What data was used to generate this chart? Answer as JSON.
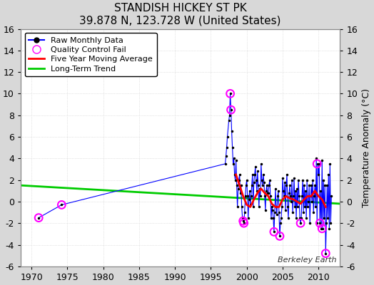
{
  "title": "STANDISH HICKEY ST PK",
  "subtitle": "39.878 N, 123.728 W (United States)",
  "ylabel_right": "Temperature Anomaly (°C)",
  "ylim": [
    -6,
    16
  ],
  "xlim": [
    1968.5,
    2013.0
  ],
  "yticks": [
    -6,
    -4,
    -2,
    0,
    2,
    4,
    6,
    8,
    10,
    12,
    14,
    16
  ],
  "xticks": [
    1970,
    1975,
    1980,
    1985,
    1990,
    1995,
    2000,
    2005,
    2010
  ],
  "bg_color": "#d8d8d8",
  "plot_bg": "#ffffff",
  "watermark": "Berkeley Earth",
  "raw_x": [
    1971.0,
    1974.2,
    1997.0,
    1997.1,
    1997.2,
    1997.3,
    1997.5,
    1997.6,
    1997.7,
    1997.8,
    1997.9,
    1998.0,
    1998.1,
    1998.2,
    1998.3,
    1998.4,
    1998.5,
    1998.6,
    1998.7,
    1998.8,
    1998.9,
    1999.0,
    1999.1,
    1999.2,
    1999.3,
    1999.4,
    1999.5,
    1999.6,
    1999.7,
    1999.8,
    1999.9,
    2000.0,
    2000.1,
    2000.2,
    2000.3,
    2000.4,
    2000.5,
    2000.6,
    2000.7,
    2000.8,
    2000.9,
    2001.0,
    2001.1,
    2001.2,
    2001.3,
    2001.4,
    2001.5,
    2001.6,
    2001.7,
    2001.8,
    2001.9,
    2002.0,
    2002.1,
    2002.2,
    2002.3,
    2002.4,
    2002.5,
    2002.6,
    2002.7,
    2002.8,
    2002.9,
    2003.0,
    2003.1,
    2003.2,
    2003.3,
    2003.4,
    2003.5,
    2003.6,
    2003.7,
    2003.8,
    2003.9,
    2004.0,
    2004.1,
    2004.2,
    2004.3,
    2004.4,
    2004.5,
    2004.6,
    2004.7,
    2004.8,
    2004.9,
    2005.0,
    2005.1,
    2005.2,
    2005.3,
    2005.4,
    2005.5,
    2005.6,
    2005.7,
    2005.8,
    2005.9,
    2006.0,
    2006.1,
    2006.2,
    2006.3,
    2006.4,
    2006.5,
    2006.6,
    2006.7,
    2006.8,
    2006.9,
    2007.0,
    2007.1,
    2007.2,
    2007.3,
    2007.4,
    2007.5,
    2007.6,
    2007.7,
    2007.8,
    2007.9,
    2008.0,
    2008.1,
    2008.2,
    2008.3,
    2008.4,
    2008.5,
    2008.6,
    2008.7,
    2008.8,
    2008.9,
    2009.0,
    2009.1,
    2009.2,
    2009.3,
    2009.4,
    2009.5,
    2009.6,
    2009.7,
    2009.8,
    2009.9,
    2010.0,
    2010.1,
    2010.2,
    2010.3,
    2010.4,
    2010.5,
    2010.6,
    2010.7,
    2010.8,
    2010.9,
    2011.0,
    2011.1,
    2011.2,
    2011.3,
    2011.4,
    2011.5,
    2011.6,
    2011.7,
    2011.8
  ],
  "raw_y": [
    -1.5,
    -0.3,
    3.5,
    4.2,
    5.0,
    6.0,
    7.5,
    8.0,
    10.0,
    8.5,
    6.5,
    5.0,
    3.5,
    4.0,
    2.5,
    2.0,
    3.8,
    1.5,
    -0.5,
    1.2,
    2.0,
    2.5,
    0.8,
    1.5,
    -0.5,
    -1.5,
    -1.8,
    -2.0,
    -1.0,
    0.5,
    1.5,
    2.0,
    0.5,
    -1.5,
    0.2,
    1.0,
    -0.3,
    0.5,
    1.5,
    2.5,
    -0.5,
    1.8,
    2.5,
    3.2,
    2.0,
    1.0,
    2.8,
    1.5,
    -0.5,
    1.2,
    0.5,
    3.5,
    2.0,
    1.5,
    2.5,
    1.8,
    0.5,
    -0.8,
    1.0,
    1.5,
    0.8,
    0.8,
    1.5,
    2.0,
    0.5,
    -1.5,
    -0.5,
    -0.8,
    -1.5,
    -2.8,
    -1.0,
    1.2,
    -0.5,
    -1.2,
    0.5,
    1.0,
    -1.0,
    -3.2,
    -2.0,
    -1.5,
    -0.5,
    2.2,
    1.0,
    0.5,
    1.8,
    -0.8,
    1.5,
    2.5,
    -0.5,
    -1.5,
    0.8,
    1.5,
    0.5,
    0.0,
    2.0,
    -1.0,
    0.5,
    2.2,
    -0.5,
    1.0,
    -1.5,
    1.2,
    -0.5,
    2.0,
    0.5,
    -1.5,
    -2.0,
    -1.5,
    0.5,
    2.0,
    -1.0,
    1.5,
    -0.5,
    1.0,
    -1.5,
    2.0,
    -0.5,
    0.0,
    1.5,
    -2.0,
    0.5,
    1.5,
    0.0,
    2.0,
    -1.0,
    0.5,
    1.5,
    -0.5,
    4.0,
    -2.0,
    3.5,
    2.5,
    3.5,
    -2.0,
    1.0,
    -2.5,
    3.8,
    -2.5,
    2.0,
    -1.5,
    1.5,
    -4.8,
    -2.0,
    1.5,
    -1.5,
    2.5,
    -2.5,
    3.5,
    -2.0,
    0.5
  ],
  "qc_x": [
    1971.0,
    1974.2,
    1997.7,
    1997.8,
    1999.5,
    1999.6,
    2003.8,
    2004.6,
    2007.5,
    2009.8,
    2010.2,
    2010.5,
    2011.0
  ],
  "qc_y": [
    -1.5,
    -0.3,
    10.0,
    8.5,
    -1.8,
    -2.0,
    -2.8,
    -3.2,
    -2.0,
    3.5,
    -2.0,
    -2.5,
    -4.8
  ],
  "ma_x": [
    1998.5,
    1999.0,
    1999.5,
    2000.0,
    2000.5,
    2001.0,
    2001.5,
    2002.0,
    2002.5,
    2003.0,
    2003.5,
    2004.0,
    2004.5,
    2005.0,
    2005.5,
    2006.0,
    2006.5,
    2007.0,
    2007.5,
    2008.0,
    2008.5,
    2009.0,
    2009.5,
    2010.0,
    2010.5,
    2011.0
  ],
  "ma_y": [
    2.5,
    1.5,
    0.5,
    -0.3,
    -0.5,
    0.2,
    0.8,
    1.2,
    0.8,
    0.5,
    -0.2,
    -0.5,
    -0.5,
    0.2,
    0.5,
    0.3,
    0.2,
    0.0,
    -0.2,
    0.2,
    0.5,
    0.5,
    1.0,
    0.5,
    0.2,
    -0.5
  ],
  "trend_x": [
    1968.5,
    2013.0
  ],
  "trend_y": [
    1.5,
    -0.2
  ]
}
